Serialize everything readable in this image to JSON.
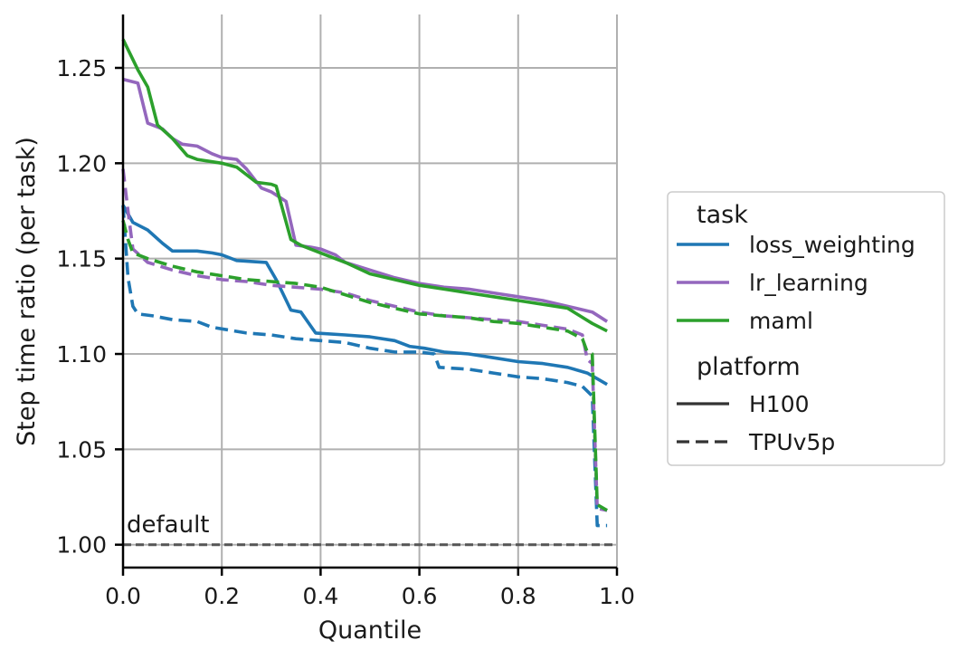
{
  "chart_data": {
    "type": "line",
    "title": "",
    "xlabel": "Quantile",
    "ylabel": "Step time ratio (per task)",
    "xlim": [
      0.0,
      1.0
    ],
    "ylim": [
      0.988,
      1.278
    ],
    "xticks": [
      "0.0",
      "0.2",
      "0.4",
      "0.6",
      "0.8",
      "1.0"
    ],
    "yticks": [
      "1.00",
      "1.05",
      "1.10",
      "1.15",
      "1.20",
      "1.25"
    ],
    "grid": true,
    "reference_line": {
      "y": 1.0,
      "label": "default",
      "color": "#555555"
    },
    "legend": {
      "placement": "right",
      "task_title": "task",
      "platform_title": "platform",
      "tasks": [
        {
          "label": "loss_weighting",
          "color": "#1f77b4"
        },
        {
          "label": "lr_learning",
          "color": "#9467bd"
        },
        {
          "label": "maml",
          "color": "#2ca02c"
        }
      ],
      "platforms": [
        {
          "label": "H100",
          "dash": "solid"
        },
        {
          "label": "TPUv5p",
          "dash": "dashed"
        }
      ]
    },
    "series": [
      {
        "name": "loss_weighting",
        "task": "loss_weighting",
        "platform": "H100",
        "color": "#1f77b4",
        "dash": "solid",
        "x": [
          0.0,
          0.02,
          0.05,
          0.08,
          0.1,
          0.15,
          0.18,
          0.2,
          0.23,
          0.29,
          0.31,
          0.34,
          0.36,
          0.39,
          0.45,
          0.5,
          0.55,
          0.58,
          0.61,
          0.65,
          0.7,
          0.75,
          0.8,
          0.85,
          0.9,
          0.94,
          0.98
        ],
        "y": [
          1.178,
          1.169,
          1.165,
          1.158,
          1.154,
          1.154,
          1.153,
          1.152,
          1.149,
          1.148,
          1.139,
          1.123,
          1.122,
          1.111,
          1.11,
          1.109,
          1.107,
          1.104,
          1.103,
          1.101,
          1.1,
          1.098,
          1.096,
          1.095,
          1.093,
          1.09,
          1.084
        ]
      },
      {
        "name": "loss_weighting",
        "task": "loss_weighting",
        "platform": "TPUv5p",
        "color": "#1f77b4",
        "dash": "dashed",
        "x": [
          0.0,
          0.01,
          0.02,
          0.03,
          0.06,
          0.1,
          0.15,
          0.18,
          0.25,
          0.3,
          0.35,
          0.45,
          0.5,
          0.55,
          0.6,
          0.63,
          0.64,
          0.7,
          0.75,
          0.8,
          0.85,
          0.9,
          0.93,
          0.95,
          0.96,
          0.98
        ],
        "y": [
          1.178,
          1.14,
          1.125,
          1.121,
          1.12,
          1.118,
          1.117,
          1.114,
          1.111,
          1.11,
          1.108,
          1.106,
          1.103,
          1.101,
          1.101,
          1.1,
          1.093,
          1.092,
          1.09,
          1.088,
          1.087,
          1.085,
          1.083,
          1.078,
          1.01,
          1.01
        ]
      },
      {
        "name": "lr_learning",
        "task": "lr_learning",
        "platform": "H100",
        "color": "#9467bd",
        "dash": "solid",
        "x": [
          0.0,
          0.03,
          0.05,
          0.08,
          0.1,
          0.12,
          0.15,
          0.18,
          0.2,
          0.23,
          0.25,
          0.28,
          0.3,
          0.33,
          0.35,
          0.38,
          0.4,
          0.43,
          0.45,
          0.5,
          0.55,
          0.6,
          0.65,
          0.7,
          0.75,
          0.8,
          0.85,
          0.9,
          0.95,
          0.98
        ],
        "y": [
          1.244,
          1.242,
          1.221,
          1.218,
          1.213,
          1.21,
          1.209,
          1.205,
          1.203,
          1.202,
          1.197,
          1.187,
          1.185,
          1.18,
          1.157,
          1.156,
          1.155,
          1.152,
          1.148,
          1.144,
          1.14,
          1.137,
          1.135,
          1.134,
          1.132,
          1.13,
          1.128,
          1.125,
          1.122,
          1.117
        ]
      },
      {
        "name": "lr_learning",
        "task": "lr_learning",
        "platform": "TPUv5p",
        "color": "#9467bd",
        "dash": "dashed",
        "x": [
          0.0,
          0.01,
          0.02,
          0.05,
          0.1,
          0.15,
          0.2,
          0.25,
          0.3,
          0.35,
          0.4,
          0.45,
          0.5,
          0.55,
          0.6,
          0.65,
          0.7,
          0.75,
          0.8,
          0.85,
          0.9,
          0.93,
          0.94,
          0.95,
          0.96,
          0.98
        ],
        "y": [
          1.197,
          1.175,
          1.155,
          1.148,
          1.144,
          1.141,
          1.139,
          1.138,
          1.136,
          1.135,
          1.134,
          1.132,
          1.128,
          1.125,
          1.122,
          1.12,
          1.119,
          1.118,
          1.117,
          1.115,
          1.113,
          1.11,
          1.097,
          1.095,
          1.019,
          1.018
        ]
      },
      {
        "name": "maml",
        "task": "maml",
        "platform": "H100",
        "color": "#2ca02c",
        "dash": "solid",
        "x": [
          0.0,
          0.03,
          0.05,
          0.07,
          0.1,
          0.13,
          0.15,
          0.2,
          0.23,
          0.25,
          0.27,
          0.3,
          0.31,
          0.34,
          0.36,
          0.4,
          0.45,
          0.5,
          0.55,
          0.6,
          0.65,
          0.7,
          0.75,
          0.8,
          0.85,
          0.9,
          0.95,
          0.98
        ],
        "y": [
          1.265,
          1.249,
          1.24,
          1.22,
          1.213,
          1.204,
          1.202,
          1.2,
          1.198,
          1.194,
          1.19,
          1.189,
          1.188,
          1.16,
          1.157,
          1.153,
          1.148,
          1.142,
          1.139,
          1.136,
          1.134,
          1.132,
          1.13,
          1.128,
          1.126,
          1.124,
          1.116,
          1.112
        ]
      },
      {
        "name": "maml",
        "task": "maml",
        "platform": "TPUv5p",
        "color": "#2ca02c",
        "dash": "dashed",
        "x": [
          0.0,
          0.01,
          0.02,
          0.05,
          0.1,
          0.15,
          0.2,
          0.25,
          0.3,
          0.35,
          0.4,
          0.45,
          0.5,
          0.55,
          0.6,
          0.65,
          0.7,
          0.75,
          0.8,
          0.85,
          0.9,
          0.93,
          0.94,
          0.95,
          0.96,
          0.98
        ],
        "y": [
          1.17,
          1.16,
          1.153,
          1.15,
          1.146,
          1.143,
          1.141,
          1.139,
          1.138,
          1.137,
          1.135,
          1.131,
          1.127,
          1.124,
          1.121,
          1.12,
          1.119,
          1.117,
          1.116,
          1.114,
          1.112,
          1.108,
          1.101,
          1.1,
          1.021,
          1.018
        ]
      }
    ]
  }
}
